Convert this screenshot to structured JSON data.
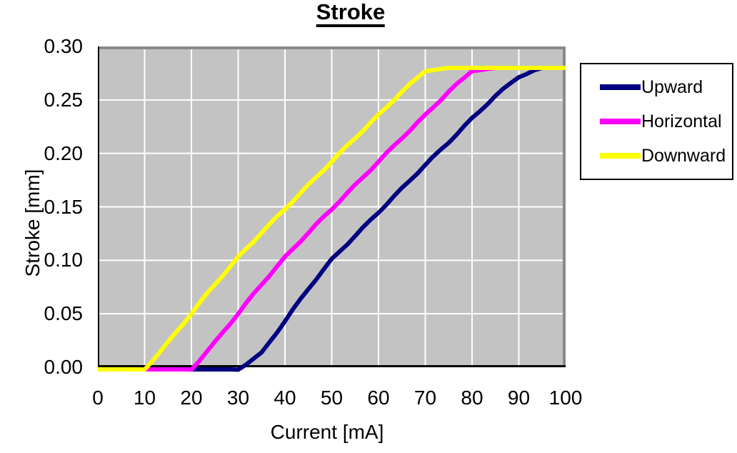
{
  "page": {
    "background": "#ffffff"
  },
  "chart_data": {
    "type": "line",
    "title": "Stroke",
    "xlabel": "Current [mA]",
    "ylabel": "Stroke [mm]",
    "xlim": [
      0,
      100
    ],
    "ylim": [
      0,
      0.3
    ],
    "x_ticks": [
      0,
      10,
      20,
      30,
      40,
      50,
      60,
      70,
      80,
      90,
      100
    ],
    "x_tick_labels": [
      "0",
      "10",
      "20",
      "30",
      "40",
      "50",
      "60",
      "70",
      "80",
      "90",
      "100"
    ],
    "y_ticks": [
      0,
      0.05,
      0.1,
      0.15,
      0.2,
      0.25,
      0.3
    ],
    "y_tick_labels": [
      "0.00",
      "0.05",
      "0.10",
      "0.15",
      "0.20",
      "0.25",
      "0.30"
    ],
    "grid": true,
    "legend_position": "right-outside",
    "colors": {
      "plot_background": "#c3c3c3",
      "gridline": "#ffffff",
      "axis": "#000000",
      "plot_shadow_border": "#8a8a8a",
      "legend_border": "#000000",
      "text": "#000000"
    },
    "x": [
      0,
      5,
      10,
      15,
      20,
      25,
      30,
      35,
      40,
      45,
      50,
      55,
      60,
      65,
      70,
      75,
      80,
      85,
      90,
      95,
      100
    ],
    "series": [
      {
        "name": "Upward",
        "color": "#000080",
        "values": [
          0,
          0,
          0,
          0,
          0,
          0,
          0,
          0.015,
          0.045,
          0.075,
          0.102,
          0.124,
          0.146,
          0.168,
          0.19,
          0.211,
          0.233,
          0.254,
          0.272,
          0.28,
          0.28
        ]
      },
      {
        "name": "Horizontal",
        "color": "#ff00ff",
        "values": [
          0,
          0,
          0,
          0,
          0,
          0.025,
          0.052,
          0.079,
          0.104,
          0.127,
          0.149,
          0.171,
          0.193,
          0.215,
          0.236,
          0.258,
          0.277,
          0.28,
          0.28,
          0.28,
          0.28
        ]
      },
      {
        "name": "Downward",
        "color": "#ffff00",
        "values": [
          0,
          0,
          0,
          0.025,
          0.052,
          0.079,
          0.104,
          0.127,
          0.149,
          0.171,
          0.193,
          0.215,
          0.236,
          0.258,
          0.277,
          0.28,
          0.28,
          0.28,
          0.28,
          0.28,
          0.28
        ]
      }
    ]
  }
}
